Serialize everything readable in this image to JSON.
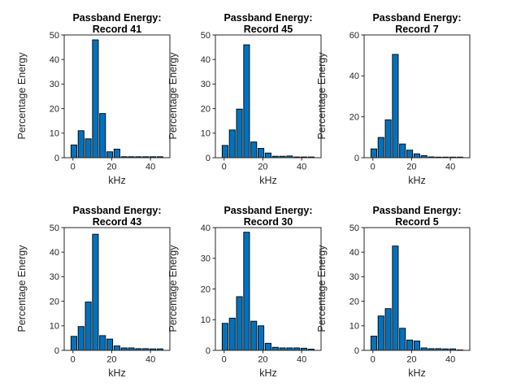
{
  "figure": {
    "background": "#ffffff",
    "bar_fill": "#0072BD",
    "bar_edge": "#000000",
    "axis_color": "#262626",
    "tick_label_color": "#262626",
    "title_color": "#000000"
  },
  "chart_data": [
    {
      "type": "bar",
      "title": "Passband Energy: Record 41",
      "title_lines": [
        "Passband Energy:",
        "Record 41"
      ],
      "xlabel": "kHz",
      "ylabel": "Percentage Energy",
      "x_khz": [
        0.5,
        4.2,
        7.9,
        11.6,
        15.3,
        19.0,
        22.7,
        26.4,
        30.1,
        33.8,
        37.5,
        41.2,
        44.9
      ],
      "values": [
        5.2,
        11.0,
        7.7,
        48.0,
        18.0,
        2.4,
        3.5,
        0.4,
        0.4,
        0.4,
        0.4,
        0.4,
        0.4
      ],
      "bar_width_khz": 3.0,
      "xlim": [
        -4.5,
        50
      ],
      "ylim": [
        0,
        50
      ],
      "xticks": [
        0,
        20,
        40
      ],
      "yticks": [
        0,
        10,
        20,
        30,
        40,
        50
      ],
      "grid": false
    },
    {
      "type": "bar",
      "title": "Passband Energy: Record 45",
      "title_lines": [
        "Passband Energy:",
        "Record 45"
      ],
      "xlabel": "kHz",
      "ylabel": "Percentage Energy",
      "x_khz": [
        0.5,
        4.2,
        7.9,
        11.6,
        15.3,
        19.0,
        22.7,
        26.4,
        30.1,
        33.8,
        37.5,
        41.2,
        44.9
      ],
      "values": [
        5.0,
        11.3,
        19.8,
        46.0,
        6.4,
        3.8,
        1.9,
        0.6,
        0.6,
        0.7,
        0.3,
        0.3,
        0.3
      ],
      "bar_width_khz": 3.0,
      "xlim": [
        -4.5,
        50
      ],
      "ylim": [
        0,
        50
      ],
      "xticks": [
        0,
        20,
        40
      ],
      "yticks": [
        0,
        10,
        20,
        30,
        40,
        50
      ],
      "grid": false
    },
    {
      "type": "bar",
      "title": "Passband Energy: Record 7",
      "title_lines": [
        "Passband Energy:",
        "Record 7"
      ],
      "xlabel": "kHz",
      "ylabel": "Percentage Energy",
      "x_khz": [
        0.5,
        4.2,
        7.9,
        11.6,
        15.3,
        19.0,
        22.7,
        26.4,
        30.1,
        33.8,
        37.5,
        41.2,
        44.9
      ],
      "values": [
        4.3,
        9.9,
        18.5,
        50.5,
        6.7,
        3.7,
        1.9,
        1.0,
        0.4,
        0.3,
        0.3,
        0.3,
        0.3
      ],
      "bar_width_khz": 3.0,
      "xlim": [
        -4.5,
        50
      ],
      "ylim": [
        0,
        60
      ],
      "xticks": [
        0,
        20,
        40
      ],
      "yticks": [
        0,
        20,
        40,
        60
      ],
      "grid": false
    },
    {
      "type": "bar",
      "title": "Passband Energy: Record 43",
      "title_lines": [
        "Passband Energy:",
        "Record 43"
      ],
      "xlabel": "kHz",
      "ylabel": "Percentage Energy",
      "x_khz": [
        0.5,
        4.2,
        7.9,
        11.6,
        15.3,
        19.0,
        22.7,
        26.4,
        30.1,
        33.8,
        37.5,
        41.2,
        44.9
      ],
      "values": [
        5.7,
        9.7,
        19.7,
        47.3,
        6.0,
        4.6,
        1.8,
        1.0,
        1.0,
        0.7,
        0.7,
        0.6,
        0.6
      ],
      "bar_width_khz": 3.0,
      "xlim": [
        -4.5,
        50
      ],
      "ylim": [
        0,
        50
      ],
      "xticks": [
        0,
        20,
        40
      ],
      "yticks": [
        0,
        10,
        20,
        30,
        40,
        50
      ],
      "grid": false
    },
    {
      "type": "bar",
      "title": "Passband Energy: Record 30",
      "title_lines": [
        "Passband Energy:",
        "Record 30"
      ],
      "xlabel": "kHz",
      "ylabel": "Percentage Energy",
      "x_khz": [
        0.5,
        4.2,
        7.9,
        11.6,
        15.3,
        19.0,
        22.7,
        26.4,
        30.1,
        33.8,
        37.5,
        41.2,
        44.9
      ],
      "values": [
        8.8,
        10.5,
        17.5,
        38.5,
        9.5,
        8.0,
        2.3,
        1.0,
        0.8,
        0.8,
        0.8,
        0.7,
        0.4
      ],
      "bar_width_khz": 3.0,
      "xlim": [
        -4.5,
        50
      ],
      "ylim": [
        0,
        40
      ],
      "xticks": [
        0,
        20,
        40
      ],
      "yticks": [
        0,
        10,
        20,
        30,
        40
      ],
      "grid": false
    },
    {
      "type": "bar",
      "title": "Passband Energy: Record 5",
      "title_lines": [
        "Passband Energy:",
        "Record 5"
      ],
      "xlabel": "kHz",
      "ylabel": "Percentage Energy",
      "x_khz": [
        0.5,
        4.2,
        7.9,
        11.6,
        15.3,
        19.0,
        22.7,
        26.4,
        30.1,
        33.8,
        37.5,
        41.2,
        44.9
      ],
      "values": [
        5.8,
        14.0,
        17.0,
        42.5,
        9.0,
        4.2,
        3.8,
        1.0,
        0.7,
        0.7,
        0.6,
        0.6,
        0.2
      ],
      "bar_width_khz": 3.0,
      "xlim": [
        -4.5,
        50
      ],
      "ylim": [
        0,
        50
      ],
      "xticks": [
        0,
        20,
        40
      ],
      "yticks": [
        0,
        10,
        20,
        30,
        40,
        50
      ],
      "grid": false
    }
  ]
}
